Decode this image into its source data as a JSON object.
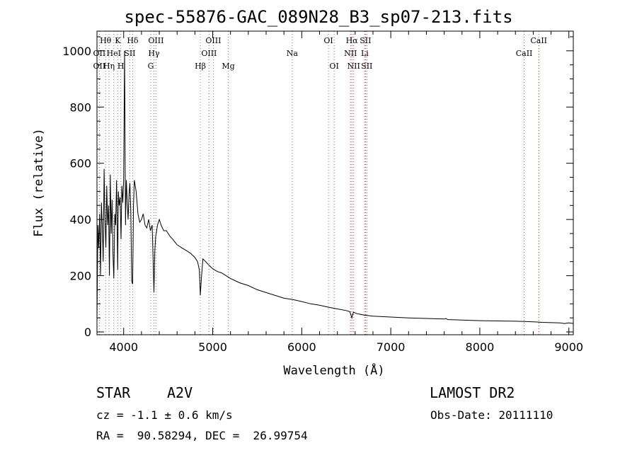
{
  "chart_data": {
    "type": "line",
    "title": "spec-55876-GAC_089N28_B3_sp07-213.fits",
    "xlabel": "Wavelength (Å)",
    "ylabel": "Flux (relative)",
    "xlim": [
      3700,
      9050
    ],
    "ylim": [
      -10,
      1070
    ],
    "xticks": [
      "4000",
      "5000",
      "6000",
      "7000",
      "8000",
      "9000"
    ],
    "yticks": [
      "0",
      "200",
      "400",
      "600",
      "800",
      "1000"
    ],
    "grid": false,
    "line_color": "#000000",
    "series": [
      {
        "x": [
          3700,
          3710,
          3720,
          3730,
          3740,
          3750,
          3760,
          3770,
          3780,
          3790,
          3800,
          3810,
          3820,
          3830,
          3840,
          3850,
          3860,
          3870,
          3880,
          3889,
          3900,
          3910,
          3920,
          3933,
          3940,
          3950,
          3960,
          3970,
          3980,
          3990,
          4000,
          4010,
          4020,
          4030,
          4040,
          4050,
          4060,
          4070,
          4080,
          4090,
          4101,
          4110,
          4120,
          4140,
          4160,
          4180,
          4200,
          4220,
          4240,
          4260,
          4280,
          4300,
          4320,
          4330,
          4340,
          4350,
          4360,
          4370,
          4380,
          4400,
          4420,
          4450,
          4480,
          4500,
          4520,
          4550,
          4600,
          4650,
          4700,
          4750,
          4800,
          4830,
          4850,
          4861,
          4875,
          4890,
          4920,
          4950,
          5000,
          5050,
          5100,
          5150,
          5200,
          5300,
          5400,
          5500,
          5600,
          5700,
          5800,
          5900,
          6000,
          6100,
          6200,
          6300,
          6400,
          6500,
          6540,
          6563,
          6580,
          6620,
          6700,
          6800,
          7000,
          7200,
          7400,
          7600,
          7620,
          7640,
          7800,
          8000,
          8200,
          8400,
          8500,
          8600,
          8700,
          8800,
          8900,
          8950,
          9000,
          9050
        ],
        "y": [
          40,
          380,
          300,
          420,
          200,
          460,
          380,
          250,
          580,
          400,
          300,
          520,
          380,
          450,
          200,
          560,
          350,
          470,
          280,
          190,
          420,
          380,
          540,
          220,
          500,
          450,
          480,
          330,
          520,
          460,
          540,
          1000,
          380,
          540,
          460,
          400,
          490,
          530,
          430,
          180,
          170,
          450,
          540,
          500,
          420,
          390,
          400,
          420,
          380,
          370,
          400,
          360,
          380,
          260,
          140,
          290,
          340,
          360,
          380,
          400,
          380,
          360,
          360,
          350,
          340,
          330,
          310,
          300,
          290,
          280,
          265,
          250,
          220,
          130,
          200,
          260,
          250,
          240,
          225,
          215,
          210,
          200,
          190,
          175,
          165,
          150,
          140,
          130,
          120,
          115,
          108,
          100,
          95,
          88,
          82,
          76,
          72,
          50,
          70,
          65,
          60,
          56,
          53,
          50,
          48,
          46,
          48,
          44,
          42,
          40,
          39,
          38,
          37,
          36,
          34,
          33,
          32,
          30,
          32,
          30
        ]
      }
    ],
    "line_markers": [
      {
        "wl": 3797,
        "label": "Hθ",
        "row": 0,
        "color": "#777777"
      },
      {
        "wl": 3727,
        "label": "OII",
        "row": 1,
        "color": "#777777"
      },
      {
        "wl": 3727,
        "label": "OII",
        "row": 2,
        "color": "#777777"
      },
      {
        "wl": 3835,
        "label": "Hη",
        "row": 2,
        "color": "#777777"
      },
      {
        "wl": 3889,
        "label": "HeI",
        "row": 1,
        "color": "#777777"
      },
      {
        "wl": 3933,
        "label": "K",
        "row": 0,
        "color": "#777777"
      },
      {
        "wl": 3968,
        "label": "H",
        "row": 2,
        "color": "#777777"
      },
      {
        "wl": 4069,
        "label": "SII",
        "row": 1,
        "color": "#777777"
      },
      {
        "wl": 4101,
        "label": "Hδ",
        "row": 0,
        "color": "#777777"
      },
      {
        "wl": 4304,
        "label": "G",
        "row": 2,
        "color": "#777777"
      },
      {
        "wl": 4340,
        "label": "Hγ",
        "row": 1,
        "color": "#777777"
      },
      {
        "wl": 4363,
        "label": "OIII",
        "row": 0,
        "color": "#777777"
      },
      {
        "wl": 4861,
        "label": "Hβ",
        "row": 2,
        "color": "#777777"
      },
      {
        "wl": 4959,
        "label": "OIII",
        "row": 1,
        "color": "#777777"
      },
      {
        "wl": 5007,
        "label": "OIII",
        "row": 0,
        "color": "#777777"
      },
      {
        "wl": 5175,
        "label": "Mg",
        "row": 2,
        "color": "#777777"
      },
      {
        "wl": 5893,
        "label": "Na",
        "row": 1,
        "color": "#777777"
      },
      {
        "wl": 6300,
        "label": "OI",
        "row": 0,
        "color": "#777777"
      },
      {
        "wl": 6364,
        "label": "OI",
        "row": 2,
        "color": "#777777"
      },
      {
        "wl": 6548,
        "label": "NII",
        "row": 1,
        "color": "#cc3333"
      },
      {
        "wl": 6563,
        "label": "Hα",
        "row": 0,
        "color": "#cc3333"
      },
      {
        "wl": 6583,
        "label": "NII",
        "row": 2,
        "color": "#cc3333"
      },
      {
        "wl": 6708,
        "label": "Li",
        "row": 1,
        "color": "#cc3333"
      },
      {
        "wl": 6716,
        "label": "SII",
        "row": 0,
        "color": "#cc3333"
      },
      {
        "wl": 6731,
        "label": "SII",
        "row": 2,
        "color": "#cc3333"
      },
      {
        "wl": 8498,
        "label": "CaII",
        "row": 1,
        "color": "#cc3333"
      },
      {
        "wl": 8662,
        "label": "CaII",
        "row": 0,
        "color": "#cc3333"
      }
    ]
  },
  "info": {
    "class": "STAR",
    "subclass": "A2V",
    "cz": "cz = -1.1 ± 0.6 km/s",
    "coords": "RA =  90.58294, DEC =  26.99754",
    "survey": "LAMOST DR2",
    "obsdate": "Obs-Date: 20111110"
  }
}
